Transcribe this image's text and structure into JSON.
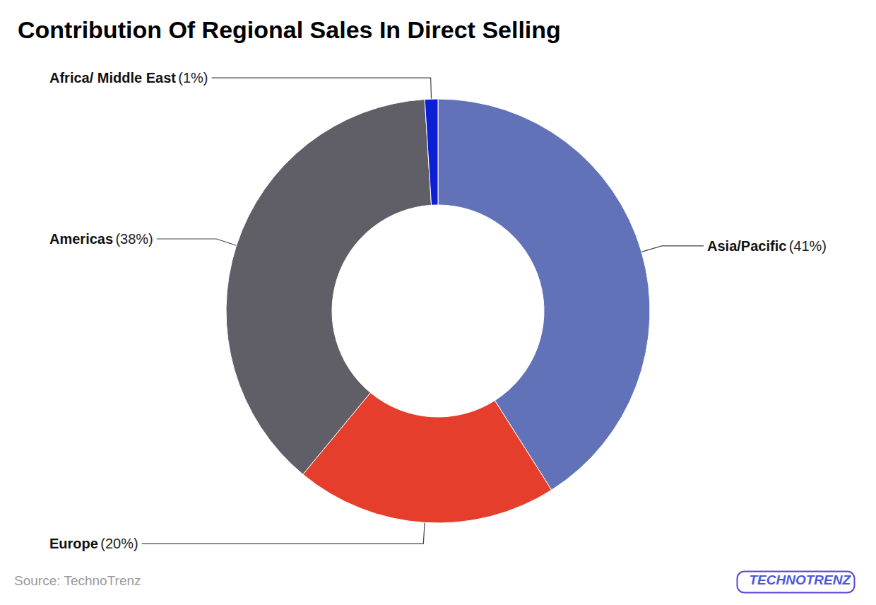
{
  "chart_data": {
    "type": "pie",
    "title": "Contribution Of Regional Sales In Direct Selling",
    "categories": [
      "Asia/Pacific",
      "Europe",
      "Americas",
      "Africa/ Middle East"
    ],
    "values": [
      41,
      20,
      38,
      1
    ],
    "value_labels": [
      "(41%)",
      "(20%)",
      "(38%)",
      "(1%)"
    ],
    "colors": [
      "#6272B8",
      "#E53E2C",
      "#605F68",
      "#0D1FD6"
    ],
    "data_labels": true,
    "source": "Source: TechnoTrenz",
    "logo": "TECHNOTRENZ"
  }
}
